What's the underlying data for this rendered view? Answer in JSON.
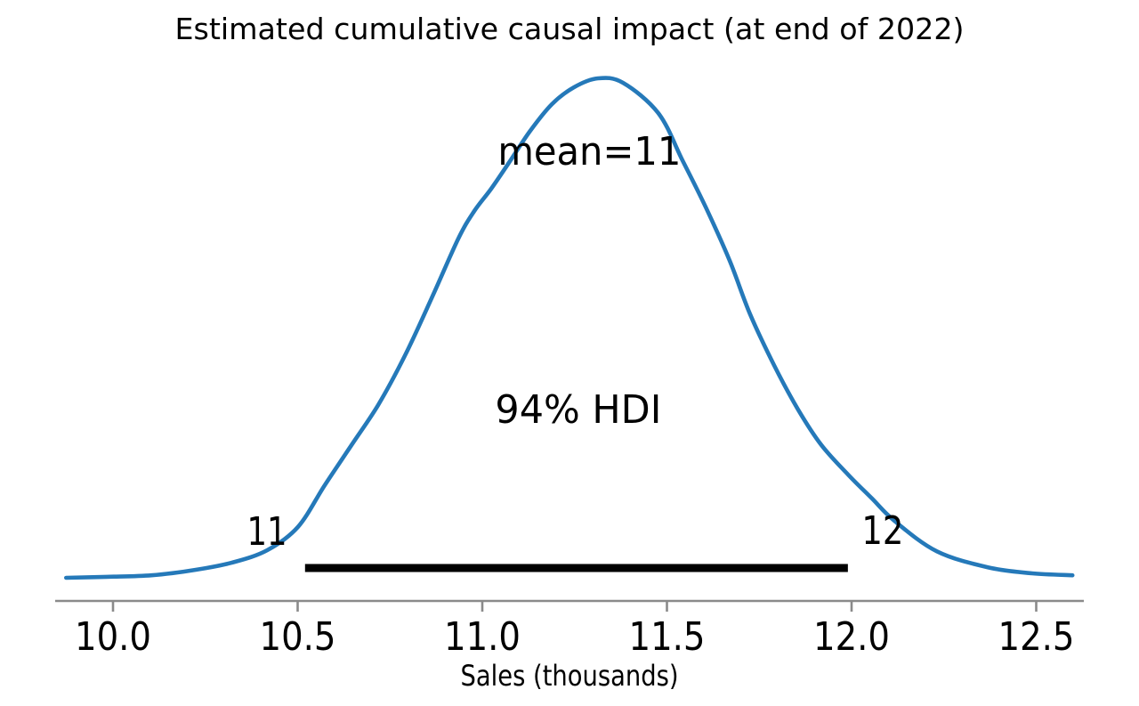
{
  "chart_data": {
    "type": "kde-density",
    "title": "Estimated cumulative causal impact (at end of 2022)",
    "xlabel": "Sales (thousands)",
    "x_ticks": [
      10.0,
      10.5,
      11.0,
      11.5,
      12.0,
      12.5
    ],
    "x_tick_labels": [
      "10.0",
      "10.5",
      "11.0",
      "11.5",
      "12.0",
      "12.5"
    ],
    "xlim": [
      9.87,
      12.6
    ],
    "grid": false,
    "legend": "none",
    "curve_color": "#2579b9",
    "axis_color": "#8a8a8a",
    "hdi_bar_color": "#000000",
    "series": [
      {
        "name": "posterior-density",
        "points": [
          [
            9.873,
            0.0
          ],
          [
            9.983,
            0.002
          ],
          [
            10.104,
            0.005
          ],
          [
            10.224,
            0.016
          ],
          [
            10.32,
            0.03
          ],
          [
            10.417,
            0.055
          ],
          [
            10.501,
            0.102
          ],
          [
            10.573,
            0.185
          ],
          [
            10.646,
            0.266
          ],
          [
            10.718,
            0.346
          ],
          [
            10.79,
            0.444
          ],
          [
            10.863,
            0.56
          ],
          [
            10.935,
            0.679
          ],
          [
            10.978,
            0.734
          ],
          [
            11.024,
            0.779
          ],
          [
            11.072,
            0.831
          ],
          [
            11.128,
            0.893
          ],
          [
            11.188,
            0.948
          ],
          [
            11.248,
            0.982
          ],
          [
            11.313,
            1.0
          ],
          [
            11.381,
            0.991
          ],
          [
            11.477,
            0.93
          ],
          [
            11.542,
            0.836
          ],
          [
            11.605,
            0.742
          ],
          [
            11.67,
            0.635
          ],
          [
            11.725,
            0.528
          ],
          [
            11.79,
            0.426
          ],
          [
            11.855,
            0.337
          ],
          [
            11.918,
            0.266
          ],
          [
            11.99,
            0.207
          ],
          [
            12.055,
            0.159
          ],
          [
            12.116,
            0.114
          ],
          [
            12.231,
            0.053
          ],
          [
            12.369,
            0.021
          ],
          [
            12.489,
            0.009
          ],
          [
            12.598,
            0.005
          ]
        ]
      }
    ],
    "mean": {
      "label": "mean=11",
      "value": 11,
      "label_x": 11.29,
      "label_y": 0.827
    },
    "hdi": {
      "text": "94% HDI",
      "probability": 0.94,
      "lo": 10.52,
      "hi": 11.99,
      "lo_label": "11",
      "hi_label": "12",
      "bar_y": 0.0196,
      "text_x": 11.26,
      "text_y": 0.31,
      "lo_label_x": 10.417,
      "lo_label_y": 0.066,
      "hi_label_x": 12.084,
      "hi_label_y": 0.068
    }
  }
}
